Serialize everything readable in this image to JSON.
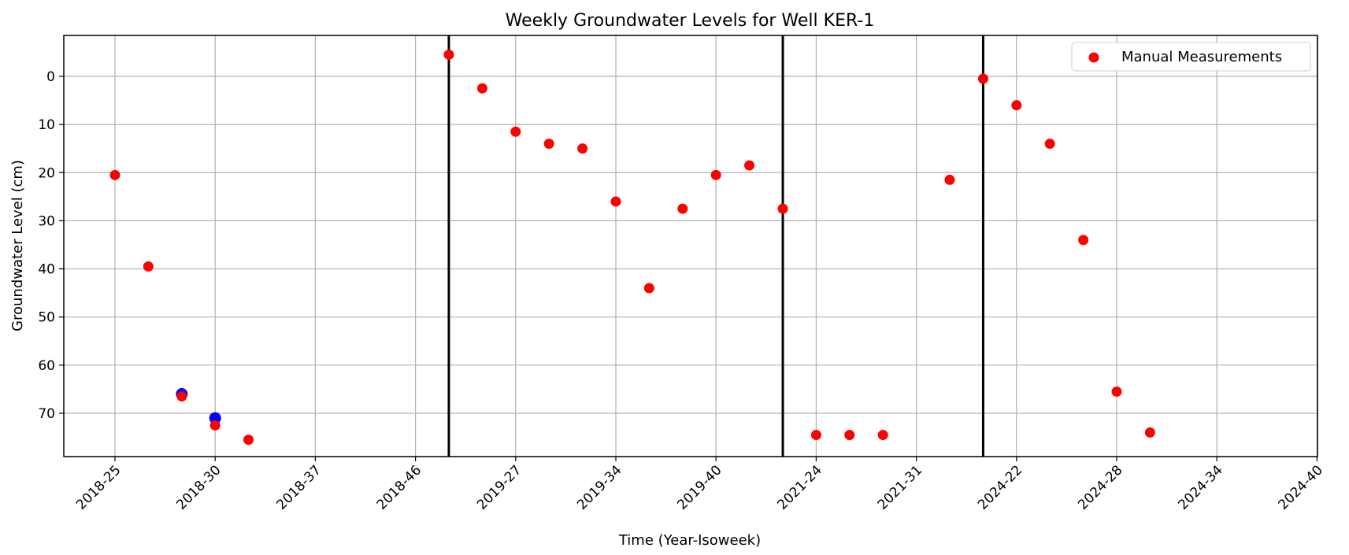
{
  "chart_data": {
    "type": "scatter",
    "title": "Weekly Groundwater Levels for Well KER-1",
    "xlabel": "Time (Year-Isoweek)",
    "ylabel": "Groundwater Level (cm)",
    "x_ticks": [
      "2018-25",
      "2018-30",
      "2018-37",
      "2018-46",
      "2019-27",
      "2019-34",
      "2019-40",
      "2021-24",
      "2021-31",
      "2024-22",
      "2024-28",
      "2024-34",
      "2024-40"
    ],
    "y_ticks": [
      0,
      10,
      20,
      30,
      40,
      50,
      60,
      70
    ],
    "ylim": [
      79,
      -8.5
    ],
    "y_inverted": true,
    "grid": true,
    "legend_position": "top-right",
    "series": [
      {
        "name": "Manual Measurements",
        "color": "#ff0000",
        "points": [
          {
            "x": "2018-25",
            "y": 20.5
          },
          {
            "x": "2018-27",
            "y": 39.5
          },
          {
            "x": "2018-29",
            "y": 66.5
          },
          {
            "x": "2018-30",
            "y": 72.5
          },
          {
            "x": "2018-32",
            "y": 75.5
          },
          {
            "x": "2019-26",
            "y": -4.5
          },
          {
            "x": "2019-26",
            "y": 2.5
          },
          {
            "x": "2019-27",
            "y": 11.5
          },
          {
            "x": "2019-30",
            "y": 14.0
          },
          {
            "x": "2019-32",
            "y": 15.0
          },
          {
            "x": "2019-34",
            "y": 26.0
          },
          {
            "x": "2019-36",
            "y": 44.0
          },
          {
            "x": "2019-38",
            "y": 27.5
          },
          {
            "x": "2019-40",
            "y": 20.5
          },
          {
            "x": "2019-42",
            "y": 18.5
          },
          {
            "x": "2021-22",
            "y": 27.5
          },
          {
            "x": "2021-24",
            "y": 74.5
          },
          {
            "x": "2021-26",
            "y": 74.5
          },
          {
            "x": "2021-28",
            "y": 74.5
          },
          {
            "x": "2021-32",
            "y": 21.5
          },
          {
            "x": "2024-20",
            "y": 0.5
          },
          {
            "x": "2024-22",
            "y": 6.0
          },
          {
            "x": "2024-24",
            "y": 14.0
          },
          {
            "x": "2024-26",
            "y": 34.0
          },
          {
            "x": "2024-28",
            "y": 65.5
          },
          {
            "x": "2024-30",
            "y": 74.0
          }
        ]
      },
      {
        "name": "",
        "color": "#0000ff",
        "points": [
          {
            "x": "2018-29",
            "y": 66.0
          },
          {
            "x": "2018-30",
            "y": 71.0
          }
        ]
      }
    ],
    "vertical_lines": [
      {
        "x": "2018-46 / 2019-26 boundary",
        "color": "#000000"
      },
      {
        "x": "2019-42 / 2021-22 boundary",
        "color": "#000000"
      },
      {
        "x": "2021-32 / 2024-20 boundary",
        "color": "#000000"
      }
    ],
    "legend": [
      {
        "label": "Manual Measurements",
        "color": "#ff0000"
      }
    ]
  }
}
